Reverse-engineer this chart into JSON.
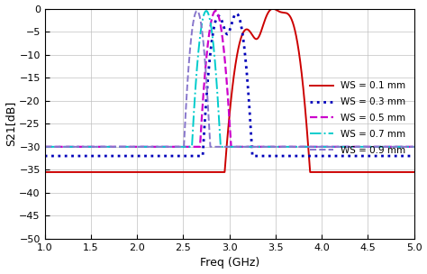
{
  "xlabel": "Freq (GHz)",
  "ylabel": "S21[dB]",
  "xlim": [
    1.0,
    5.0
  ],
  "ylim": [
    -50,
    0
  ],
  "yticks": [
    0,
    -5,
    -10,
    -15,
    -20,
    -25,
    -30,
    -35,
    -40,
    -45,
    -50
  ],
  "xticks": [
    1.0,
    1.5,
    2.0,
    2.5,
    3.0,
    3.5,
    4.0,
    4.5,
    5.0
  ],
  "series": [
    {
      "label": "WS = 0.1 mm",
      "color": "#cc0000",
      "linestyle": "solid",
      "linewidth": 1.4,
      "f0": 3.45,
      "fl": 3.18,
      "fu": 3.65,
      "baseline": -35.5,
      "peaks": [
        3.18,
        3.45,
        3.65
      ],
      "peak_vals": [
        -4.5,
        -0.8,
        -1.5
      ],
      "drop_l": 2.85,
      "drop_r": 3.85
    },
    {
      "label": "WS = 0.3 mm",
      "color": "#0000bb",
      "linestyle": "dotted",
      "linewidth": 2.0,
      "f0": 3.0,
      "fl": 2.88,
      "fu": 3.1,
      "baseline": -32.0,
      "peaks": [
        2.88,
        3.08
      ],
      "peak_vals": [
        -1.5,
        -0.8
      ],
      "drop_l": 2.55,
      "drop_r": 3.35
    },
    {
      "label": "WS = 0.5 mm",
      "color": "#cc00cc",
      "linestyle": "dashed",
      "linewidth": 1.6,
      "f0": 2.85,
      "fl": 2.75,
      "fu": 2.95,
      "baseline": -30.0,
      "peaks": [
        2.85
      ],
      "peak_vals": [
        -0.3
      ],
      "drop_l": 2.45,
      "drop_r": 3.2
    },
    {
      "label": "WS = 0.7 mm",
      "color": "#00cccc",
      "linestyle": "dashdot",
      "linewidth": 1.4,
      "f0": 2.75,
      "fl": 2.65,
      "fu": 2.85,
      "baseline": -30.0,
      "peaks": [
        2.75
      ],
      "peak_vals": [
        -0.2
      ],
      "drop_l": 2.35,
      "drop_r": 3.05
    },
    {
      "label": "WS = 0.9 mm",
      "color": "#8877cc",
      "linestyle": "dashed",
      "linewidth": 1.4,
      "f0": 2.65,
      "fl": 2.55,
      "fu": 2.75,
      "baseline": -30.0,
      "peaks": [
        2.65
      ],
      "peak_vals": [
        -0.2
      ],
      "drop_l": 2.25,
      "drop_r": 2.95
    }
  ],
  "background_color": "#ffffff",
  "grid_color": "#c0c0c0"
}
